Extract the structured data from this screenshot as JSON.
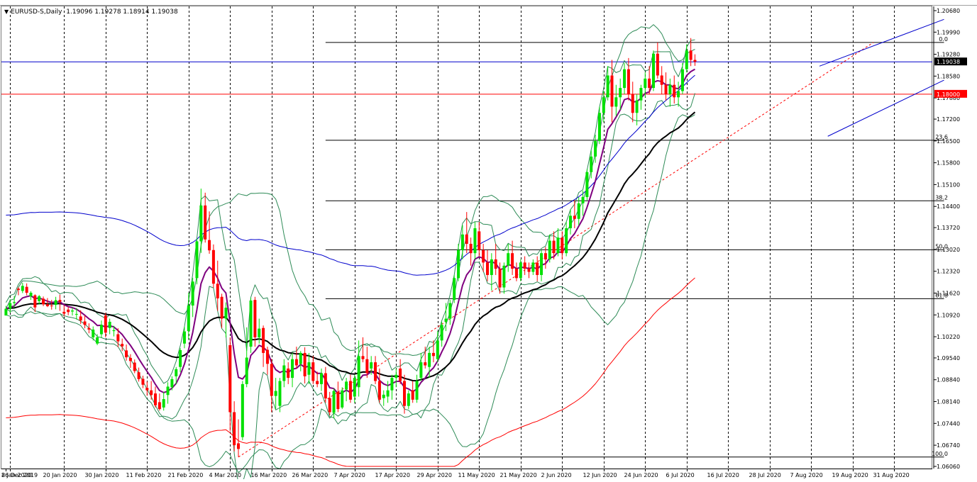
{
  "colors": {
    "bull": "#00e000",
    "bear": "#ff0000",
    "ma_fast": "#7f007f",
    "ma_slow": "#000000",
    "ma_long": "#ff0000",
    "bollinger": "#2e8b57",
    "blue_ma": "#0000cc",
    "fib": "#000000",
    "hline_red": "#ff0000",
    "hline_blue": "#0000cc"
  },
  "header": {
    "symbol": "EURUSD-S,Daily",
    "ohlc": "1.19096 1.19278 1.18914 1.19038"
  },
  "chart_data": {
    "type": "candlestick",
    "symbol": "EURUSD-S",
    "timeframe": "Daily",
    "y_axis": {
      "range": [
        1.0606,
        1.2068
      ],
      "ticks": [
        "1.20680",
        "1.19990",
        "1.19280",
        "1.18580",
        "1.17880",
        "1.17200",
        "1.16500",
        "1.15800",
        "1.15100",
        "1.14400",
        "1.13720",
        "1.13020",
        "1.12320",
        "1.11620",
        "1.10920",
        "1.10220",
        "1.09540",
        "1.08840",
        "1.08140",
        "1.07440",
        "1.06740",
        "1.06060"
      ]
    },
    "x_axis": {
      "labels": [
        "26 Dec 2019",
        "8 Jan 2020",
        "20 Jan 2020",
        "30 Jan 2020",
        "11 Feb 2020",
        "21 Feb 2020",
        "4 Mar 2020",
        "16 Mar 2020",
        "26 Mar 2020",
        "7 Apr 2020",
        "17 Apr 2020",
        "29 Apr 2020",
        "11 May 2020",
        "21 May 2020",
        "2 Jun 2020",
        "12 Jun 2020",
        "24 Jun 2020",
        "6 Jul 2020",
        "16 Jul 2020",
        "28 Jul 2020",
        "7 Aug 2020",
        "19 Aug 2020",
        "31 Aug 2020"
      ]
    },
    "price_labels": [
      {
        "value": 1.19038,
        "text": "1.19038",
        "color": "#000000"
      },
      {
        "value": 1.18,
        "text": "1.18000",
        "color": "#ff0000"
      }
    ],
    "horizontal_lines": [
      {
        "value": 1.19038,
        "color": "#0000cc"
      },
      {
        "value": 1.18,
        "color": "#ff0000"
      }
    ],
    "fibonacci": {
      "high": 1.1966,
      "low": 1.0636,
      "levels": [
        {
          "ratio": 0.0,
          "label": "0.0"
        },
        {
          "ratio": 0.236,
          "label": "23.6"
        },
        {
          "ratio": 0.382,
          "label": "38.2"
        },
        {
          "ratio": 0.5,
          "label": "50.0"
        },
        {
          "ratio": 0.618,
          "label": "61.8"
        },
        {
          "ratio": 1.0,
          "label": "100.0"
        }
      ]
    },
    "vertical_gridlines": [
      1,
      14,
      24,
      34,
      44,
      54,
      64,
      74,
      84,
      94,
      104,
      114,
      124,
      134,
      144,
      154,
      164,
      174,
      184,
      194,
      204,
      214
    ],
    "candles": [
      [
        1.109,
        1.1121,
        1.1095,
        1.1112
      ],
      [
        1.1112,
        1.1142,
        1.1099,
        1.113
      ],
      [
        1.113,
        1.1153,
        1.1116,
        1.1133
      ],
      [
        1.1176,
        1.1181,
        1.1155,
        1.1172
      ],
      [
        1.1169,
        1.1195,
        1.1162,
        1.1185
      ],
      [
        1.1182,
        1.1193,
        1.1155,
        1.1163
      ],
      [
        1.1152,
        1.1168,
        1.114,
        1.1163
      ],
      [
        1.1155,
        1.1158,
        1.1101,
        1.1116
      ],
      [
        1.1136,
        1.1156,
        1.1125,
        1.1152
      ],
      [
        1.1144,
        1.1151,
        1.112,
        1.1126
      ],
      [
        1.1126,
        1.1146,
        1.1117,
        1.112
      ],
      [
        1.1122,
        1.114,
        1.1109,
        1.112
      ],
      [
        1.1124,
        1.115,
        1.111,
        1.1139
      ],
      [
        1.114,
        1.1157,
        1.1105,
        1.1134
      ],
      [
        1.1102,
        1.1123,
        1.1087,
        1.1096
      ],
      [
        1.1109,
        1.1118,
        1.1091,
        1.1101
      ],
      [
        1.1103,
        1.1115,
        1.109,
        1.1106
      ],
      [
        1.1094,
        1.1114,
        1.1077,
        1.1095
      ],
      [
        1.1087,
        1.1107,
        1.1063,
        1.1074
      ],
      [
        1.1071,
        1.109,
        1.1049,
        1.106
      ],
      [
        1.105,
        1.1065,
        1.1033,
        1.1045
      ],
      [
        1.102,
        1.1055,
        1.101,
        1.1045
      ],
      [
        1.1,
        1.103,
        1.0995,
        1.102
      ],
      [
        1.103,
        1.1074,
        1.1018,
        1.106
      ],
      [
        1.109,
        1.1098,
        1.102,
        1.1035
      ],
      [
        1.105,
        1.108,
        1.103,
        1.107
      ],
      [
        1.104,
        1.1057,
        1.1023,
        1.1043
      ],
      [
        1.103,
        1.1049,
        1.0989,
        1.1007
      ],
      [
        1.0999,
        1.1016,
        1.0976,
        1.0991
      ],
      [
        1.0978,
        1.0997,
        1.0945,
        1.0956
      ],
      [
        1.0954,
        1.0966,
        1.0922,
        1.0944
      ],
      [
        1.0939,
        1.0949,
        1.0905,
        1.0912
      ],
      [
        1.0908,
        1.0923,
        1.0878,
        1.0886
      ],
      [
        1.0887,
        1.0897,
        1.0857,
        1.0868
      ],
      [
        1.0858,
        1.0878,
        1.0833,
        1.085
      ],
      [
        1.085,
        1.088,
        1.082,
        1.0835
      ],
      [
        1.084,
        1.0862,
        1.0795,
        1.0802
      ],
      [
        1.0812,
        1.084,
        1.0785,
        1.079
      ],
      [
        1.0795,
        1.0845,
        1.0785,
        1.0822
      ],
      [
        1.0835,
        1.0876,
        1.0807,
        1.0862
      ],
      [
        1.086,
        1.0895,
        1.085,
        1.0886
      ],
      [
        1.0895,
        1.0925,
        1.0869,
        1.0918
      ],
      [
        1.0925,
        1.0985,
        1.0908,
        1.0979
      ],
      [
        1.1,
        1.1054,
        1.0985,
        1.1039
      ],
      [
        1.104,
        1.1163,
        1.1013,
        1.1122
      ],
      [
        1.1122,
        1.1211,
        1.1085,
        1.1199
      ],
      [
        1.121,
        1.1337,
        1.119,
        1.1328
      ],
      [
        1.1328,
        1.1497,
        1.1291,
        1.1443
      ],
      [
        1.1443,
        1.1484,
        1.1324,
        1.1334
      ],
      [
        1.1332,
        1.1424,
        1.1288,
        1.1299
      ],
      [
        1.13,
        1.1318,
        1.1179,
        1.1192
      ],
      [
        1.1192,
        1.1266,
        1.1105,
        1.1145
      ],
      [
        1.115,
        1.116,
        1.105,
        1.108
      ],
      [
        1.108,
        1.1132,
        1.102,
        1.1115
      ],
      [
        1.0995,
        1.102,
        1.072,
        1.078
      ],
      [
        1.078,
        1.0815,
        1.0654,
        1.0674
      ],
      [
        1.068,
        1.0757,
        1.0636,
        1.0662
      ],
      [
        1.07,
        1.088,
        1.069,
        1.087
      ],
      [
        1.087,
        1.1052,
        1.086,
        1.0955
      ],
      [
        1.099,
        1.1147,
        1.097,
        1.1138
      ],
      [
        1.114,
        1.115,
        1.099,
        1.102
      ],
      [
        1.102,
        1.108,
        1.1,
        1.1048
      ],
      [
        1.105,
        1.1058,
        1.0925,
        1.097
      ],
      [
        1.098,
        1.099,
        1.09,
        1.0935
      ],
      [
        1.0935,
        1.0951,
        1.078,
        1.0832
      ],
      [
        1.0832,
        1.089,
        1.079,
        1.0848
      ],
      [
        1.08,
        1.089,
        1.078,
        1.088
      ],
      [
        1.088,
        1.095,
        1.086,
        1.093
      ],
      [
        1.092,
        1.094,
        1.087,
        1.089
      ],
      [
        1.089,
        1.097,
        1.086,
        1.095
      ],
      [
        1.095,
        1.099,
        1.092,
        1.093
      ],
      [
        1.0935,
        1.0976,
        1.0911,
        1.097
      ],
      [
        1.097,
        1.0988,
        1.0872,
        1.0895
      ],
      [
        1.09,
        1.097,
        1.087,
        1.094
      ],
      [
        1.094,
        1.096,
        1.087,
        1.088
      ],
      [
        1.088,
        1.091,
        1.086,
        1.087
      ],
      [
        1.087,
        1.092,
        1.0848,
        1.0905
      ],
      [
        1.0905,
        1.0925,
        1.081,
        1.0824
      ],
      [
        1.0825,
        1.0845,
        1.077,
        1.078
      ],
      [
        1.0778,
        1.0856,
        1.076,
        1.0848
      ],
      [
        1.0845,
        1.0878,
        1.078,
        1.079
      ],
      [
        1.0795,
        1.086,
        1.079,
        1.085
      ],
      [
        1.0853,
        1.089,
        1.0815,
        1.0878
      ],
      [
        1.088,
        1.09,
        1.081,
        1.082
      ],
      [
        1.083,
        1.09,
        1.081,
        1.089
      ],
      [
        1.086,
        1.101,
        1.083,
        1.096
      ],
      [
        1.096,
        1.102,
        1.094,
        1.095
      ],
      [
        1.095,
        1.099,
        1.089,
        1.0905
      ],
      [
        1.092,
        1.096,
        1.09,
        1.094
      ],
      [
        1.094,
        1.096,
        1.087,
        1.088
      ],
      [
        1.088,
        1.092,
        1.081,
        1.082
      ],
      [
        1.0825,
        1.085,
        1.08,
        1.0836
      ],
      [
        1.083,
        1.088,
        1.081,
        1.085
      ],
      [
        1.085,
        1.09,
        1.082,
        1.089
      ],
      [
        1.089,
        1.092,
        1.086,
        1.09
      ],
      [
        1.092,
        1.095,
        1.087,
        1.088
      ],
      [
        1.088,
        1.09,
        1.0775,
        1.08
      ],
      [
        1.08,
        1.085,
        1.079,
        1.084
      ],
      [
        1.085,
        1.088,
        1.081,
        1.082
      ],
      [
        1.082,
        1.09,
        1.081,
        1.088
      ],
      [
        1.089,
        1.097,
        1.088,
        1.094
      ],
      [
        1.094,
        1.099,
        1.092,
        1.093
      ],
      [
        1.0925,
        1.099,
        1.089,
        1.097
      ],
      [
        1.097,
        1.101,
        1.094,
        1.096
      ],
      [
        1.095,
        1.104,
        1.094,
        1.101
      ],
      [
        1.101,
        1.107,
        1.099,
        1.106
      ],
      [
        1.107,
        1.113,
        1.104,
        1.108
      ],
      [
        1.108,
        1.114,
        1.106,
        1.113
      ],
      [
        1.114,
        1.122,
        1.113,
        1.121
      ],
      [
        1.121,
        1.132,
        1.12,
        1.13
      ],
      [
        1.13,
        1.138,
        1.127,
        1.135
      ],
      [
        1.135,
        1.1422,
        1.129,
        1.132
      ],
      [
        1.132,
        1.134,
        1.125,
        1.129
      ],
      [
        1.129,
        1.139,
        1.127,
        1.137
      ],
      [
        1.136,
        1.139,
        1.128,
        1.13
      ],
      [
        1.13,
        1.132,
        1.123,
        1.126
      ],
      [
        1.126,
        1.13,
        1.12,
        1.122
      ],
      [
        1.122,
        1.129,
        1.117,
        1.127
      ],
      [
        1.127,
        1.132,
        1.122,
        1.124
      ],
      [
        1.124,
        1.126,
        1.116,
        1.118
      ],
      [
        1.118,
        1.126,
        1.116,
        1.125
      ],
      [
        1.125,
        1.132,
        1.123,
        1.129
      ],
      [
        1.129,
        1.133,
        1.122,
        1.124
      ],
      [
        1.124,
        1.126,
        1.12,
        1.121
      ],
      [
        1.121,
        1.127,
        1.12,
        1.126
      ],
      [
        1.126,
        1.128,
        1.122,
        1.124
      ],
      [
        1.124,
        1.126,
        1.121,
        1.123
      ],
      [
        1.123,
        1.127,
        1.122,
        1.126
      ],
      [
        1.126,
        1.128,
        1.12,
        1.122
      ],
      [
        1.122,
        1.13,
        1.12,
        1.129
      ],
      [
        1.129,
        1.131,
        1.124,
        1.127
      ],
      [
        1.127,
        1.135,
        1.126,
        1.133
      ],
      [
        1.133,
        1.136,
        1.127,
        1.129
      ],
      [
        1.129,
        1.137,
        1.128,
        1.134
      ],
      [
        1.134,
        1.136,
        1.127,
        1.129
      ],
      [
        1.129,
        1.139,
        1.128,
        1.137
      ],
      [
        1.137,
        1.143,
        1.135,
        1.141
      ],
      [
        1.141,
        1.146,
        1.137,
        1.14
      ],
      [
        1.14,
        1.147,
        1.138,
        1.145
      ],
      [
        1.145,
        1.149,
        1.141,
        1.147
      ],
      [
        1.147,
        1.156,
        1.146,
        1.155
      ],
      [
        1.155,
        1.162,
        1.153,
        1.16
      ],
      [
        1.16,
        1.167,
        1.158,
        1.165
      ],
      [
        1.165,
        1.176,
        1.164,
        1.174
      ],
      [
        1.174,
        1.181,
        1.171,
        1.179
      ],
      [
        1.179,
        1.189,
        1.178,
        1.186
      ],
      [
        1.186,
        1.191,
        1.171,
        1.176
      ],
      [
        1.176,
        1.183,
        1.173,
        1.179
      ],
      [
        1.179,
        1.185,
        1.175,
        1.182
      ],
      [
        1.182,
        1.19,
        1.18,
        1.188
      ],
      [
        1.188,
        1.1916,
        1.178,
        1.18
      ],
      [
        1.18,
        1.184,
        1.171,
        1.174
      ],
      [
        1.174,
        1.18,
        1.17,
        1.178
      ],
      [
        1.178,
        1.183,
        1.175,
        1.182
      ],
      [
        1.182,
        1.187,
        1.179,
        1.185
      ],
      [
        1.185,
        1.189,
        1.18,
        1.182
      ],
      [
        1.182,
        1.194,
        1.181,
        1.193
      ],
      [
        1.193,
        1.1966,
        1.185,
        1.186
      ],
      [
        1.186,
        1.189,
        1.18,
        1.183
      ],
      [
        1.183,
        1.187,
        1.178,
        1.18
      ],
      [
        1.18,
        1.185,
        1.176,
        1.183
      ],
      [
        1.183,
        1.186,
        1.177,
        1.179
      ],
      [
        1.179,
        1.184,
        1.176,
        1.181
      ],
      [
        1.181,
        1.19,
        1.18,
        1.188
      ],
      [
        1.188,
        1.196,
        1.187,
        1.194
      ],
      [
        1.194,
        1.198,
        1.189,
        1.191
      ],
      [
        1.191,
        1.1928,
        1.1891,
        1.1904
      ]
    ]
  }
}
